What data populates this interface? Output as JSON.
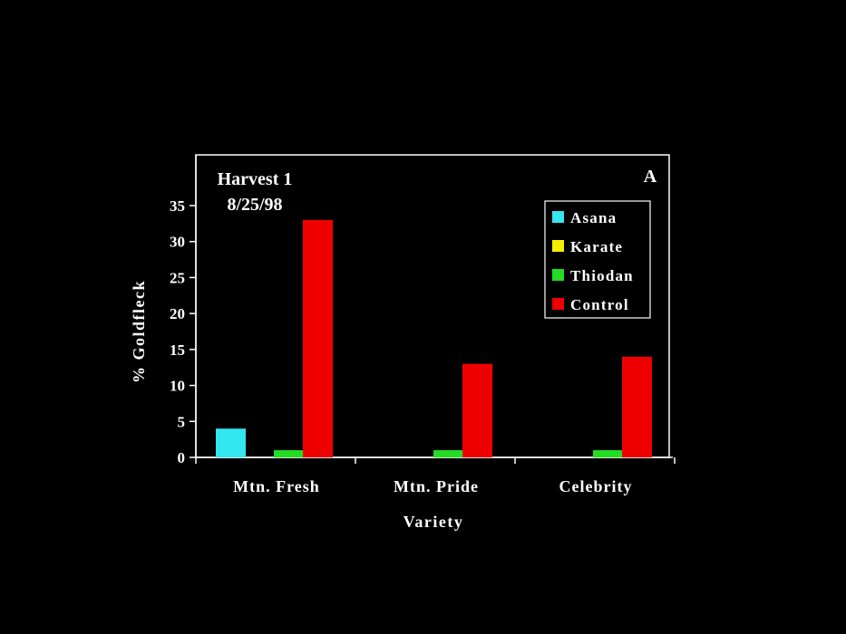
{
  "chart_data": {
    "type": "bar",
    "categories": [
      "Mtn. Fresh",
      "Mtn. Pride",
      "Celebrity"
    ],
    "series": [
      {
        "name": "Asana",
        "color": "#33e6f0",
        "values": [
          4,
          0,
          0
        ]
      },
      {
        "name": "Karate",
        "color": "#f5f000",
        "values": [
          0,
          0,
          0
        ]
      },
      {
        "name": "Thiodan",
        "color": "#22dd22",
        "values": [
          1,
          1,
          1
        ]
      },
      {
        "name": "Control",
        "color": "#ee0000",
        "values": [
          33,
          13,
          14
        ]
      }
    ],
    "xlabel": "Variety",
    "ylabel": "% Goldfleck",
    "ylim": [
      0,
      35
    ],
    "yticks": [
      0,
      5,
      10,
      15,
      20,
      25,
      30,
      35
    ],
    "annotation_line1": "Harvest 1",
    "annotation_line2": "8/25/98",
    "panel_label": "A",
    "legend_position": "top-right",
    "grid": false
  }
}
